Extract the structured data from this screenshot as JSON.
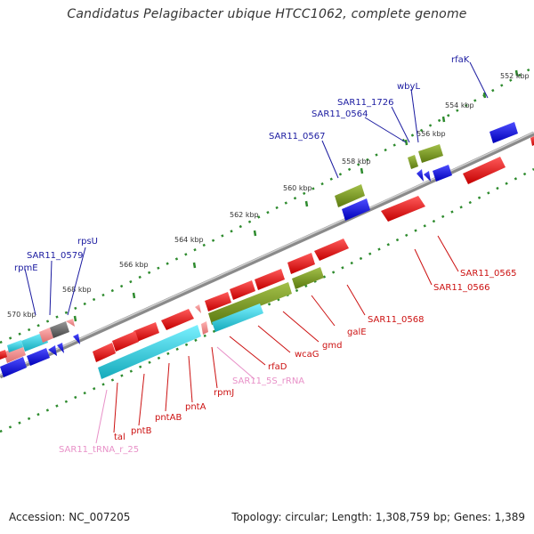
{
  "title": "Candidatus Pelagibacter ubique HTCC1062, complete genome",
  "footer": {
    "accession": "Accession: NC_007205",
    "summary": "Topology: circular; Length: 1,308,759 bp; Genes: 1,389"
  },
  "colors": {
    "backbone": "#8a8a8a",
    "tick_dots": "#2e8b2e",
    "label_blue": "#1a1aa0",
    "label_red": "#cc1111",
    "label_pink": "#e891c8",
    "gene_red": "#ee1111",
    "gene_blue": "#1111dd",
    "gene_green": "#779922",
    "gene_cyan": "#22ccdd",
    "gene_pink": "#ee8888",
    "gene_gray": "#666666"
  },
  "ticks": [
    "552 kbp",
    "554 kbp",
    "556 kbp",
    "558 kbp",
    "560 kbp",
    "562 kbp",
    "564 kbp",
    "566 kbp",
    "568 kbp",
    "570 kbp"
  ],
  "labels_top": [
    "rfaK",
    "wbyL",
    "SAR11_1726",
    "SAR11_0564",
    "SAR11_0567",
    "rpsU",
    "SAR11_0579",
    "rpmE"
  ],
  "labels_bottom": [
    "SAR11_0565",
    "SAR11_0566",
    "SAR11_0568",
    "galE",
    "gmd",
    "wcaG",
    "rfaD",
    "SAR11_5S_rRNA",
    "rpmJ",
    "pntA",
    "pntAB",
    "pntB",
    "tal",
    "SAR11_tRNA_r_25"
  ]
}
